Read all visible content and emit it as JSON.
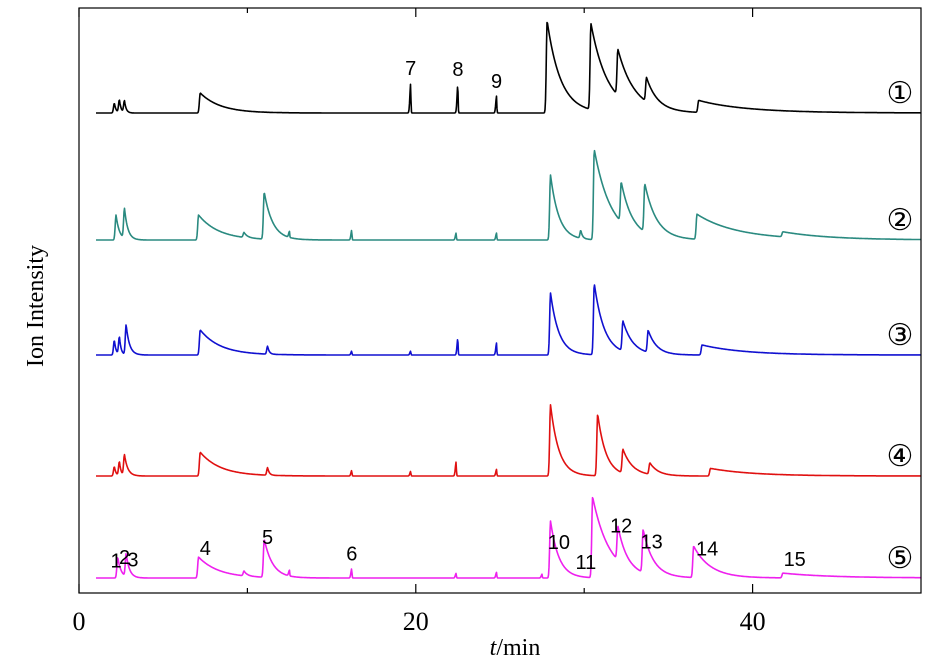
{
  "chart_data": {
    "type": "line",
    "title": "",
    "xlabel_italic": "t",
    "xlabel_unit": "/min",
    "ylabel": "Ion Intensity",
    "xlim": [
      0,
      50
    ],
    "x_ticks": [
      0,
      20,
      40
    ],
    "x_minor_ticks": [
      10,
      30,
      50
    ],
    "grid": false,
    "series": [
      {
        "name": "①",
        "color": "#000000",
        "peaks": [
          {
            "t": 2.1,
            "h": 0.1,
            "d": 0.1
          },
          {
            "t": 2.4,
            "h": 0.13,
            "d": 0.1
          },
          {
            "t": 2.7,
            "h": 0.12,
            "d": 0.1
          },
          {
            "t": 7.2,
            "h": 0.2,
            "d": 1.2
          },
          {
            "t": 19.7,
            "h": 0.3,
            "d": 0.02
          },
          {
            "t": 22.5,
            "h": 0.29,
            "d": 0.02
          },
          {
            "t": 24.8,
            "h": 0.17,
            "d": 0.02
          },
          {
            "t": 27.8,
            "h": 0.92,
            "d": 0.8
          },
          {
            "t": 30.4,
            "h": 0.86,
            "d": 1.0
          },
          {
            "t": 32.0,
            "h": 0.46,
            "d": 1.0
          },
          {
            "t": 33.7,
            "h": 0.24,
            "d": 0.6
          },
          {
            "t": 36.8,
            "h": 0.12,
            "d": 3.0
          }
        ]
      },
      {
        "name": "②",
        "color": "#2a8a80",
        "peaks": [
          {
            "t": 2.2,
            "h": 0.25,
            "d": 0.2
          },
          {
            "t": 2.7,
            "h": 0.3,
            "d": 0.2
          },
          {
            "t": 7.1,
            "h": 0.25,
            "d": 1.2
          },
          {
            "t": 9.8,
            "h": 0.05,
            "d": 0.2
          },
          {
            "t": 11.0,
            "h": 0.47,
            "d": 0.5
          },
          {
            "t": 12.5,
            "h": 0.06,
            "d": 0.02
          },
          {
            "t": 16.2,
            "h": 0.1,
            "d": 0.02
          },
          {
            "t": 22.4,
            "h": 0.07,
            "d": 0.02
          },
          {
            "t": 24.8,
            "h": 0.07,
            "d": 0.02
          },
          {
            "t": 28.0,
            "h": 0.65,
            "d": 0.5
          },
          {
            "t": 29.8,
            "h": 0.08,
            "d": 0.1
          },
          {
            "t": 30.6,
            "h": 0.9,
            "d": 1.0
          },
          {
            "t": 32.2,
            "h": 0.4,
            "d": 0.6
          },
          {
            "t": 33.6,
            "h": 0.48,
            "d": 0.7
          },
          {
            "t": 36.7,
            "h": 0.25,
            "d": 2.5
          },
          {
            "t": 41.8,
            "h": 0.05,
            "d": 3.0
          }
        ]
      },
      {
        "name": "③",
        "color": "#1010d0",
        "peaks": [
          {
            "t": 2.1,
            "h": 0.15,
            "d": 0.1
          },
          {
            "t": 2.4,
            "h": 0.18,
            "d": 0.1
          },
          {
            "t": 2.8,
            "h": 0.3,
            "d": 0.2
          },
          {
            "t": 7.2,
            "h": 0.25,
            "d": 1.2
          },
          {
            "t": 11.2,
            "h": 0.08,
            "d": 0.1
          },
          {
            "t": 16.2,
            "h": 0.04,
            "d": 0.02
          },
          {
            "t": 19.7,
            "h": 0.04,
            "d": 0.02
          },
          {
            "t": 22.5,
            "h": 0.17,
            "d": 0.02
          },
          {
            "t": 24.8,
            "h": 0.12,
            "d": 0.02
          },
          {
            "t": 28.0,
            "h": 0.62,
            "d": 0.5
          },
          {
            "t": 30.6,
            "h": 0.71,
            "d": 0.6
          },
          {
            "t": 32.3,
            "h": 0.3,
            "d": 0.6
          },
          {
            "t": 33.8,
            "h": 0.22,
            "d": 0.5
          },
          {
            "t": 37.0,
            "h": 0.1,
            "d": 2.5
          }
        ]
      },
      {
        "name": "④",
        "color": "#e01010",
        "peaks": [
          {
            "t": 2.1,
            "h": 0.1,
            "d": 0.1
          },
          {
            "t": 2.4,
            "h": 0.15,
            "d": 0.1
          },
          {
            "t": 2.7,
            "h": 0.22,
            "d": 0.2
          },
          {
            "t": 7.2,
            "h": 0.25,
            "d": 1.2
          },
          {
            "t": 11.2,
            "h": 0.08,
            "d": 0.1
          },
          {
            "t": 16.2,
            "h": 0.06,
            "d": 0.02
          },
          {
            "t": 19.7,
            "h": 0.05,
            "d": 0.02
          },
          {
            "t": 22.4,
            "h": 0.15,
            "d": 0.02
          },
          {
            "t": 24.8,
            "h": 0.07,
            "d": 0.02
          },
          {
            "t": 28.0,
            "h": 0.75,
            "d": 0.5
          },
          {
            "t": 30.8,
            "h": 0.65,
            "d": 0.5
          },
          {
            "t": 32.3,
            "h": 0.25,
            "d": 0.6
          },
          {
            "t": 33.9,
            "h": 0.12,
            "d": 0.5
          },
          {
            "t": 37.5,
            "h": 0.08,
            "d": 2.5
          }
        ]
      },
      {
        "name": "⑤",
        "color": "#ee20ee",
        "peaks": [
          {
            "t": 2.3,
            "h": 0.22,
            "d": 0.2
          },
          {
            "t": 2.8,
            "h": 0.24,
            "d": 0.2
          },
          {
            "t": 7.1,
            "h": 0.22,
            "d": 1.2
          },
          {
            "t": 9.8,
            "h": 0.05,
            "d": 0.2
          },
          {
            "t": 11.0,
            "h": 0.4,
            "d": 0.5
          },
          {
            "t": 12.5,
            "h": 0.06,
            "d": 0.02
          },
          {
            "t": 16.2,
            "h": 0.1,
            "d": 0.02
          },
          {
            "t": 22.4,
            "h": 0.05,
            "d": 0.02
          },
          {
            "t": 24.8,
            "h": 0.06,
            "d": 0.02
          },
          {
            "t": 27.5,
            "h": 0.04,
            "d": 0.02
          },
          {
            "t": 28.0,
            "h": 0.6,
            "d": 0.5
          },
          {
            "t": 30.5,
            "h": 0.85,
            "d": 1.0
          },
          {
            "t": 32.0,
            "h": 0.36,
            "d": 0.5
          },
          {
            "t": 33.5,
            "h": 0.45,
            "d": 0.6
          },
          {
            "t": 36.5,
            "h": 0.33,
            "d": 1.0
          },
          {
            "t": 41.8,
            "h": 0.05,
            "d": 3.0
          }
        ]
      }
    ],
    "peak_labels": [
      {
        "text": "7",
        "t": 19.7,
        "series": 0
      },
      {
        "text": "8",
        "t": 22.5,
        "series": 0
      },
      {
        "text": "9",
        "t": 24.8,
        "series": 0
      },
      {
        "text": "1",
        "t": 2.2,
        "series": 4
      },
      {
        "text": "2",
        "t": 2.7,
        "series": 4
      },
      {
        "text": "3",
        "t": 3.2,
        "series": 4
      },
      {
        "text": "4",
        "t": 7.5,
        "series": 4
      },
      {
        "text": "5",
        "t": 11.2,
        "series": 4
      },
      {
        "text": "6",
        "t": 16.2,
        "series": 4
      },
      {
        "text": "10",
        "t": 28.5,
        "series": 4
      },
      {
        "text": "11",
        "t": 30.1,
        "series": 4
      },
      {
        "text": "12",
        "t": 32.2,
        "series": 4
      },
      {
        "text": "13",
        "t": 34.0,
        "series": 4
      },
      {
        "text": "14",
        "t": 37.3,
        "series": 4
      },
      {
        "text": "15",
        "t": 42.5,
        "series": 4
      }
    ]
  }
}
